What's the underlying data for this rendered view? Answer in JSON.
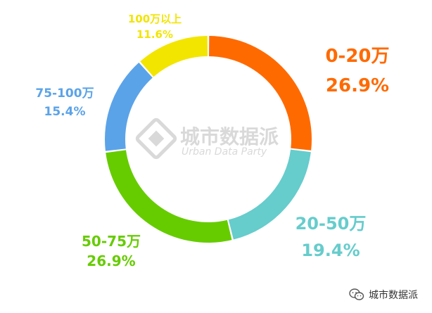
{
  "chart_data": {
    "type": "pie",
    "donut": true,
    "slices": [
      {
        "label": "0-20万",
        "value": 26.9,
        "value_text": "26.9%",
        "color": "#FF6A00"
      },
      {
        "label": "20-50万",
        "value": 19.4,
        "value_text": "19.4%",
        "color": "#66CCCC"
      },
      {
        "label": "50-75万",
        "value": 26.9,
        "value_text": "26.9%",
        "color": "#66CC00"
      },
      {
        "label": "75-100万",
        "value": 15.4,
        "value_text": "15.4%",
        "color": "#5BA3E8"
      },
      {
        "label": "100万以上",
        "value": 11.6,
        "value_text": "11.6%",
        "color": "#F2E500"
      }
    ]
  },
  "watermark": {
    "cn": "城市数据派",
    "en": "Urban Data Party",
    "color": "#D9D9D9"
  },
  "footer": {
    "icon": "wechat-icon",
    "text": "城市数据派"
  }
}
